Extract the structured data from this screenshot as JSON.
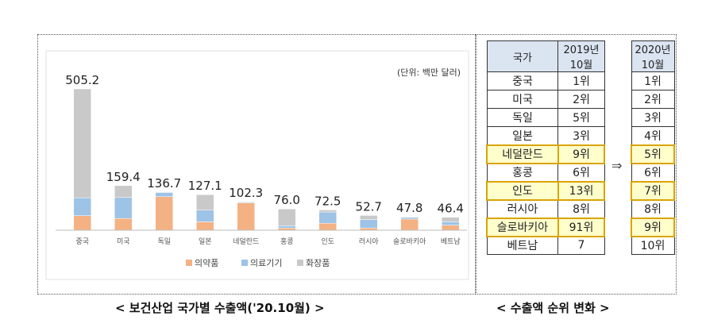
{
  "chart_data": {
    "type": "bar",
    "stacked": true,
    "unit_note": "(단위: 백만 달러)",
    "categories": [
      "중국",
      "미국",
      "독일",
      "일본",
      "네덜란드",
      "홍콩",
      "인도",
      "러시아",
      "슬로바키아",
      "베트남"
    ],
    "totals": [
      "505.2",
      "159.4",
      "136.7",
      "127.1",
      "102.3",
      "76.0",
      "72.5",
      "52.7",
      "47.8",
      "46.4"
    ],
    "series": [
      {
        "name": "의약품",
        "color": "#f4b183",
        "values": [
          52,
          42,
          120,
          30,
          98,
          8,
          25,
          8,
          40,
          18
        ]
      },
      {
        "name": "의료기기",
        "color": "#9dc3e6",
        "values": [
          64,
          75,
          15,
          42,
          3,
          8,
          40,
          30,
          6,
          12
        ]
      },
      {
        "name": "화장품",
        "color": "#c9c9c9",
        "values": [
          389.2,
          42.4,
          1.7,
          55.1,
          1.3,
          60,
          7.5,
          14.7,
          1.8,
          16.4
        ]
      }
    ],
    "legend": "bottom",
    "grid": false
  },
  "ranking": {
    "header_country": "국가",
    "header_2019": "2019년 10월",
    "header_2020": "2020년 10월",
    "arrow": "⇒",
    "rows": [
      {
        "country": "중국",
        "r2019": "1위",
        "r2020": "1위",
        "highlight": false
      },
      {
        "country": "미국",
        "r2019": "2위",
        "r2020": "2위",
        "highlight": false
      },
      {
        "country": "독일",
        "r2019": "5위",
        "r2020": "3위",
        "highlight": false
      },
      {
        "country": "일본",
        "r2019": "3위",
        "r2020": "4위",
        "highlight": false
      },
      {
        "country": "네덜란드",
        "r2019": "9위",
        "r2020": "5위",
        "highlight": true
      },
      {
        "country": "홍콩",
        "r2019": "6위",
        "r2020": "6위",
        "highlight": false
      },
      {
        "country": "인도",
        "r2019": "13위",
        "r2020": "7위",
        "highlight": true
      },
      {
        "country": "러시아",
        "r2019": "8위",
        "r2020": "8위",
        "highlight": false
      },
      {
        "country": "슬로바키아",
        "r2019": "91위",
        "r2020": "9위",
        "highlight": true
      },
      {
        "country": "베트남",
        "r2019": "7",
        "r2020": "10위",
        "highlight": false
      }
    ]
  },
  "captions": {
    "left": "< 보건산업 국가별 수출액('20.10월) >",
    "right": "< 수출액 순위 변화 >"
  }
}
